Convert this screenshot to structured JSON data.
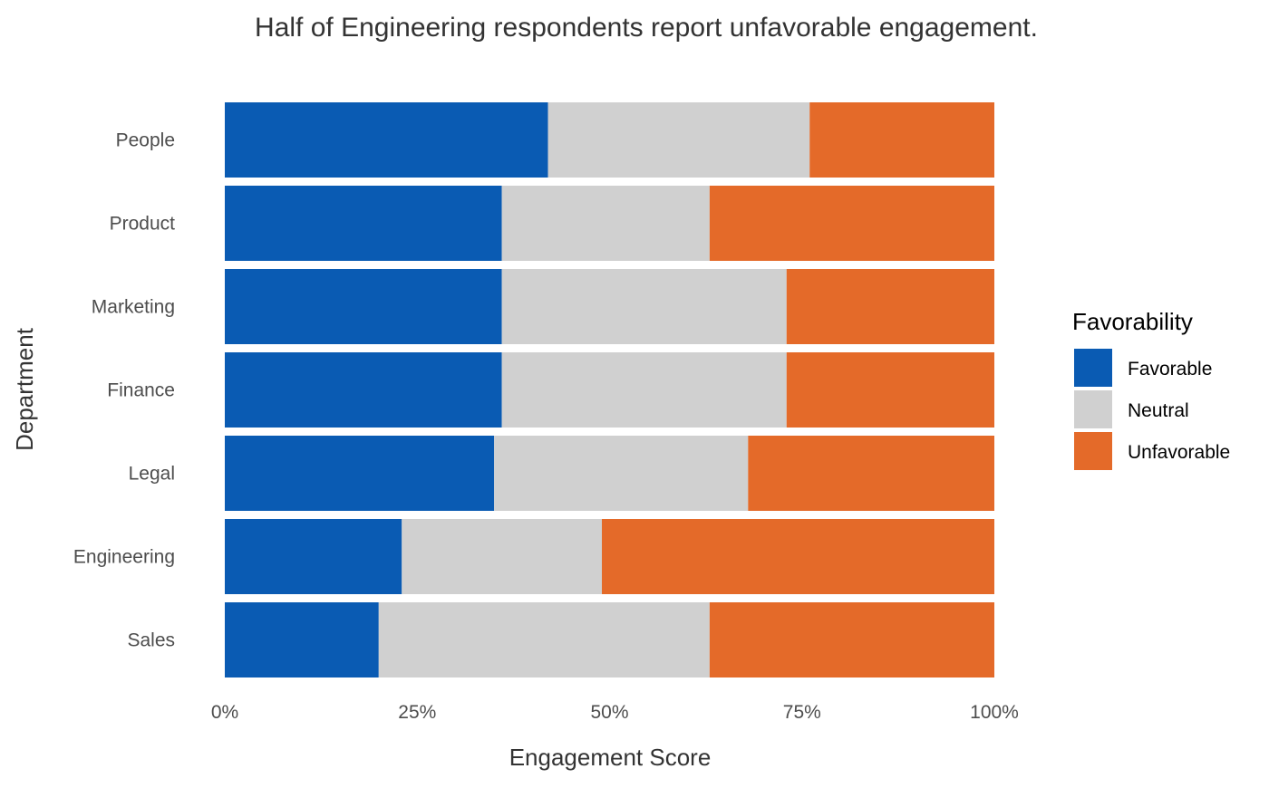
{
  "chart_data": {
    "type": "bar",
    "orientation": "horizontal",
    "stacked": true,
    "normalized": true,
    "title": "Half of Engineering respondents report unfavorable engagement.",
    "xlabel": "Engagement Score",
    "ylabel": "Department",
    "xlim": [
      0,
      100
    ],
    "x_ticks": [
      "0%",
      "25%",
      "50%",
      "75%",
      "100%"
    ],
    "x_tick_values": [
      0,
      25,
      50,
      75,
      100
    ],
    "grid": false,
    "legend_title": "Favorability",
    "legend_position": "right",
    "categories": [
      "People",
      "Product",
      "Marketing",
      "Finance",
      "Legal",
      "Engineering",
      "Sales"
    ],
    "series": [
      {
        "name": "Favorable",
        "color": "#0a5bb3",
        "values": [
          42,
          36,
          36,
          36,
          35,
          23,
          20
        ]
      },
      {
        "name": "Neutral",
        "color": "#d0d0d0",
        "values": [
          34,
          27,
          37,
          37,
          33,
          26,
          43
        ]
      },
      {
        "name": "Unfavorable",
        "color": "#e46a29",
        "values": [
          24,
          37,
          27,
          27,
          32,
          51,
          37
        ]
      }
    ]
  }
}
